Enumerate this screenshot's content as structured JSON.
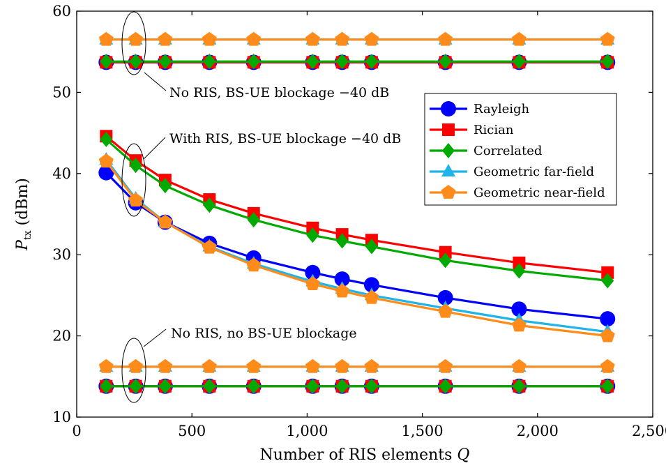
{
  "chart_data": {
    "type": "line",
    "title": "",
    "xlabel": "Number of RIS elements Q",
    "ylabel": "P_tx (dBm)",
    "xlim": [
      0,
      2500
    ],
    "ylim": [
      10,
      60
    ],
    "x_ticks": [
      0,
      500,
      1000,
      1500,
      2000,
      2500
    ],
    "x_tick_labels": [
      "0",
      "500",
      "1,000",
      "1,500",
      "2,000",
      "2,500"
    ],
    "y_ticks": [
      10,
      20,
      30,
      40,
      50,
      60
    ],
    "y_tick_labels": [
      "10",
      "20",
      "30",
      "40",
      "50",
      "60"
    ],
    "grid": false,
    "legend_position": "right",
    "x": [
      128,
      256,
      384,
      576,
      768,
      1024,
      1152,
      1280,
      1600,
      1920,
      2304
    ],
    "series": [
      {
        "name": "Rayleigh",
        "color": "#0000ff",
        "marker": "circle",
        "with_ris": [
          40.1,
          36.4,
          34.0,
          31.4,
          29.6,
          27.8,
          27.0,
          26.3,
          24.7,
          23.3,
          22.1
        ],
        "no_ris_blockage": 53.7,
        "no_ris_no_blockage": 13.8
      },
      {
        "name": "Rician",
        "color": "#ff0000",
        "marker": "square",
        "with_ris": [
          44.6,
          41.6,
          39.2,
          36.8,
          35.1,
          33.3,
          32.5,
          31.8,
          30.3,
          29.0,
          27.8
        ],
        "no_ris_blockage": 53.7,
        "no_ris_no_blockage": 13.8
      },
      {
        "name": "Correlated",
        "color": "#00aa00",
        "marker": "diamond",
        "with_ris": [
          44.2,
          41.0,
          38.5,
          36.1,
          34.3,
          32.4,
          31.7,
          31.0,
          29.3,
          28.0,
          26.8
        ],
        "no_ris_blockage": 53.8,
        "no_ris_no_blockage": 13.8
      },
      {
        "name": "Geometric far-field",
        "color": "#1fb4e8",
        "marker": "triangle",
        "with_ris": [
          41.7,
          36.9,
          34.0,
          31.0,
          28.9,
          26.7,
          25.8,
          25.0,
          23.4,
          21.9,
          20.5
        ],
        "no_ris_blockage": 56.5,
        "no_ris_no_blockage": 16.2
      },
      {
        "name": "Geometric near-field",
        "color": "#ff8c1a",
        "marker": "pentagon",
        "with_ris": [
          41.5,
          36.7,
          34.0,
          30.9,
          28.7,
          26.4,
          25.5,
          24.7,
          23.0,
          21.3,
          20.0
        ],
        "no_ris_blockage": 56.5,
        "no_ris_no_blockage": 16.2
      }
    ],
    "annotations": [
      {
        "text": "No RIS, BS-UE blockage −40 dB",
        "x": 256,
        "y": 55.3
      },
      {
        "text": "With RIS, BS-UE blockage −40 dB",
        "x": 256,
        "y": 39.5
      },
      {
        "text": "No RIS, no BS-UE blockage",
        "x": 256,
        "y": 15.0
      }
    ]
  }
}
